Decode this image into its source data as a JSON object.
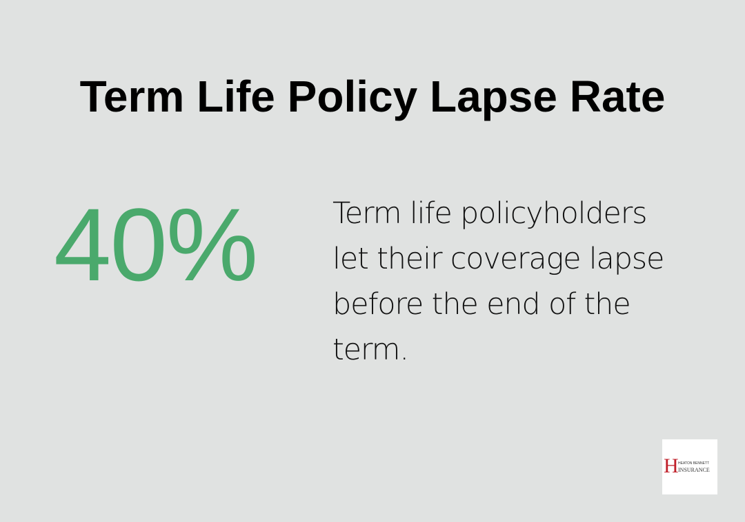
{
  "header": {
    "title": "Term Life Policy Lapse Rate"
  },
  "stat": {
    "value": "40%",
    "description": [
      "Term life policyholders",
      "let their coverage lapse",
      "before the end of the",
      "term."
    ]
  },
  "logo": {
    "letter": "H",
    "line1": "HEATON BENNETT",
    "line2": "INSURANCE"
  }
}
